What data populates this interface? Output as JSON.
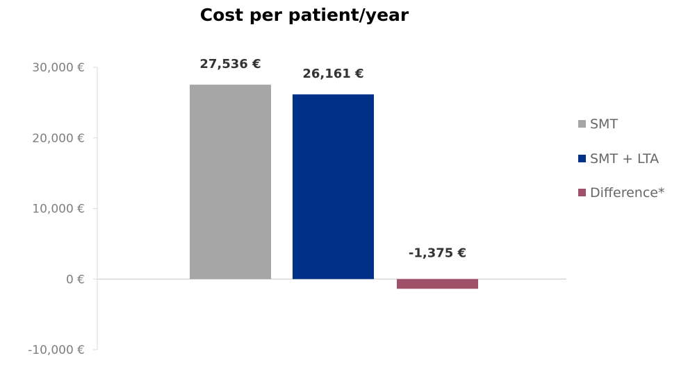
{
  "chart_data": {
    "type": "bar",
    "title": "Cost per patient/year",
    "categories": [
      "SMT",
      "SMT + LTA",
      "Difference*"
    ],
    "values": [
      27536,
      26161,
      -1375
    ],
    "data_labels": [
      "27,536 €",
      "26,161 €",
      "-1,375 €"
    ],
    "colors": [
      "#a6a6a6",
      "#003087",
      "#a05068"
    ],
    "ylim": [
      -10000,
      30000
    ],
    "yticks": [
      30000,
      20000,
      10000,
      0,
      -10000
    ],
    "ytick_labels": [
      "30,000 €",
      "20,000 €",
      "10,000 €",
      "0 €",
      "-10,000 €"
    ],
    "grid": false,
    "legend": {
      "placement": "right",
      "entries": [
        "SMT",
        "SMT + LTA",
        "Difference*"
      ]
    },
    "xlabel": "",
    "ylabel": ""
  }
}
